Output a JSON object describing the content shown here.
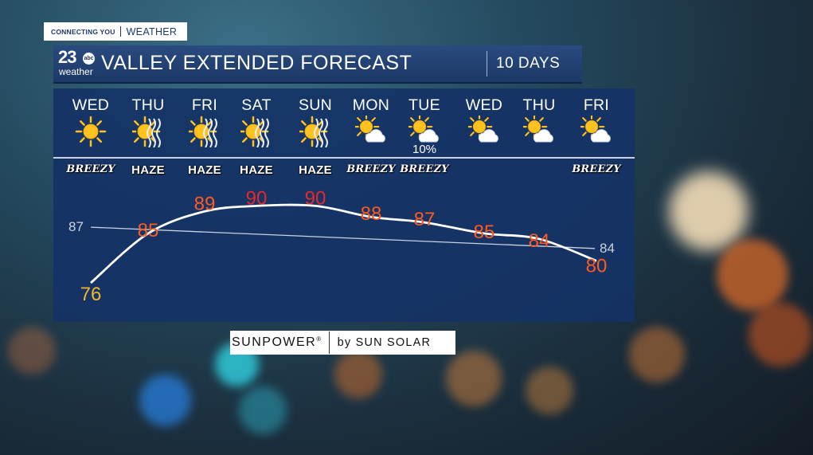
{
  "header_tag": {
    "left": "CONNECTING YOU",
    "right": "WEATHER"
  },
  "station": {
    "number": "23",
    "network": "abc",
    "sub": "weather"
  },
  "title": "VALLEY EXTENDED FORECAST",
  "range_label": "10 DAYS",
  "days": [
    {
      "label": "WED",
      "icon": "sun-icon",
      "condition": "BREEZY",
      "precip": ""
    },
    {
      "label": "THU",
      "icon": "sun-haze-icon",
      "condition": "HAZE",
      "precip": ""
    },
    {
      "label": "FRI",
      "icon": "sun-haze-icon",
      "condition": "HAZE",
      "precip": ""
    },
    {
      "label": "SAT",
      "icon": "sun-haze-icon",
      "condition": "HAZE",
      "precip": ""
    },
    {
      "label": "SUN",
      "icon": "sun-haze-icon",
      "condition": "HAZE",
      "precip": ""
    },
    {
      "label": "MON",
      "icon": "partly-cloudy-icon",
      "condition": "BREEZY",
      "precip": ""
    },
    {
      "label": "TUE",
      "icon": "partly-cloudy-icon",
      "condition": "BREEZY",
      "precip": "10%"
    },
    {
      "label": "WED",
      "icon": "partly-cloudy-icon",
      "condition": "",
      "precip": ""
    },
    {
      "label": "THU",
      "icon": "partly-cloudy-icon",
      "condition": "",
      "precip": ""
    },
    {
      "label": "FRI",
      "icon": "partly-cloudy-icon",
      "condition": "BREEZY",
      "precip": ""
    }
  ],
  "chart_data": {
    "type": "line",
    "highs": [
      76,
      85,
      89,
      90,
      90,
      88,
      87,
      85,
      84,
      80
    ],
    "normal_start": "87",
    "normal_end": "84",
    "normal_values": [
      87,
      84
    ],
    "colors": {
      "cool": "#f0b72e",
      "warm": "#ff5a1f",
      "hot": "#e8272a",
      "line": "#ffffff",
      "normal_text": "#c9d2de"
    }
  },
  "sponsor": {
    "brand": "SUNPOWER",
    "mark": "®",
    "by": "by SUN SOLAR"
  }
}
